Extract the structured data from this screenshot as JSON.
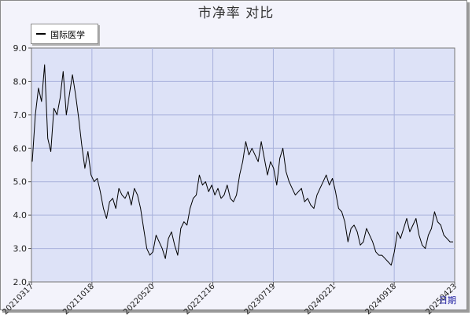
{
  "title": "市净率  对比",
  "chart_data": {
    "type": "line",
    "title": "市净率  对比",
    "xlabel": "日期",
    "ylabel": "",
    "ylim": [
      2.0,
      9.0
    ],
    "yticks": [
      "2.0",
      "3.0",
      "4.0",
      "5.0",
      "6.0",
      "7.0",
      "8.0",
      "9.0"
    ],
    "xticks": [
      "20210317",
      "20211018",
      "20220520",
      "20221216",
      "20230719",
      "20240221",
      "20240918",
      "20250423"
    ],
    "grid": true,
    "legend_position": "top-left",
    "series": [
      {
        "name": "国际医学",
        "color": "#000000",
        "values": [
          5.6,
          7.0,
          7.8,
          7.4,
          8.5,
          6.3,
          5.9,
          7.2,
          7.0,
          7.5,
          8.3,
          7.0,
          7.6,
          8.2,
          7.6,
          6.9,
          6.1,
          5.4,
          5.9,
          5.2,
          5.0,
          5.1,
          4.7,
          4.2,
          3.9,
          4.4,
          4.5,
          4.2,
          4.8,
          4.6,
          4.5,
          4.7,
          4.3,
          4.8,
          4.6,
          4.2,
          3.6,
          3.0,
          2.8,
          2.9,
          3.4,
          3.2,
          3.0,
          2.7,
          3.3,
          3.5,
          3.1,
          2.8,
          3.6,
          3.8,
          3.7,
          4.2,
          4.5,
          4.6,
          5.2,
          4.9,
          5.0,
          4.7,
          4.9,
          4.6,
          4.8,
          4.5,
          4.6,
          4.9,
          4.5,
          4.4,
          4.6,
          5.2,
          5.6,
          6.2,
          5.8,
          6.0,
          5.8,
          5.6,
          6.2,
          5.7,
          5.2,
          5.6,
          5.4,
          4.9,
          5.7,
          6.0,
          5.3,
          5.0,
          4.8,
          4.6,
          4.7,
          4.8,
          4.4,
          4.5,
          4.3,
          4.2,
          4.6,
          4.8,
          5.0,
          5.2,
          4.9,
          5.1,
          4.7,
          4.2,
          4.1,
          3.8,
          3.2,
          3.6,
          3.7,
          3.5,
          3.1,
          3.2,
          3.6,
          3.4,
          3.2,
          2.9,
          2.8,
          2.8,
          2.7,
          2.6,
          2.5,
          2.9,
          3.5,
          3.3,
          3.6,
          3.9,
          3.5,
          3.7,
          3.9,
          3.4,
          3.1,
          3.0,
          3.4,
          3.6,
          4.1,
          3.8,
          3.7,
          3.4,
          3.3,
          3.2,
          3.2
        ]
      }
    ]
  }
}
